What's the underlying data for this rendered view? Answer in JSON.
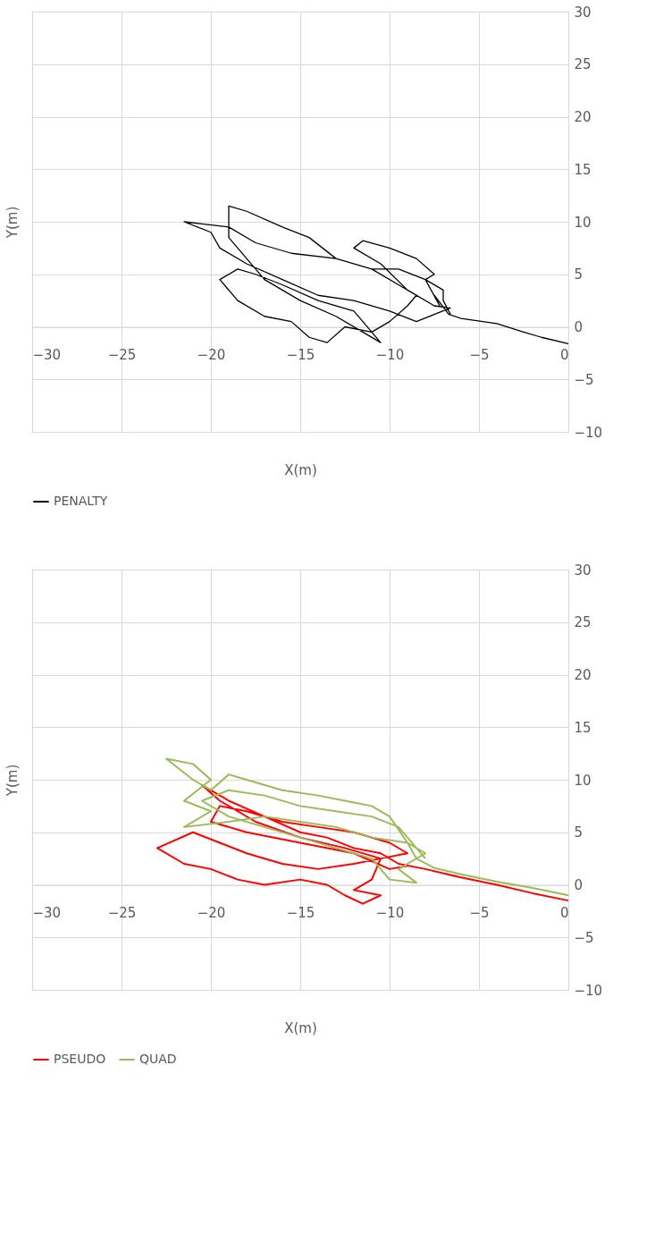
{
  "chart_data": [
    {
      "type": "line",
      "xlabel": "X(m)",
      "ylabel": "Y(m)",
      "xlim": [
        -30,
        0
      ],
      "ylim": [
        -10,
        30
      ],
      "xticks": [
        -30,
        -25,
        -20,
        -15,
        -10,
        -5,
        0
      ],
      "yticks": [
        -10,
        -5,
        0,
        5,
        10,
        15,
        20,
        25,
        30
      ],
      "grid": true,
      "legend": "bottom",
      "marker": "none",
      "line_style": "solid",
      "series": [
        {
          "name": "PENALTY",
          "color": "#000000",
          "x": [
            0,
            -1.5,
            -2.5,
            -4,
            -6,
            -6.7,
            -7.5,
            -7.2,
            -8,
            -7.5,
            -8.5,
            -10,
            -11.5,
            -12,
            -10.5,
            -9,
            -7.5,
            -6.6,
            -8.5,
            -10,
            -12,
            -14,
            -16,
            -18,
            -19.5,
            -20,
            -21.5,
            -20.5,
            -19,
            -17.5,
            -15.5,
            -13,
            -11,
            -9.5,
            -8.5,
            -9,
            -10,
            -11,
            -12.5,
            -13.5,
            -14.5,
            -15.5,
            -17,
            -18.5,
            -19.5,
            -18.5,
            -17.5,
            -16,
            -14,
            -12,
            -10.5,
            -11.5,
            -13,
            -15,
            -17,
            -18,
            -19,
            -19,
            -18,
            -16,
            -14.5,
            -13,
            -11,
            -9.5,
            -8,
            -7,
            -7,
            -6.6
          ],
          "values": [
            -1.6,
            -1,
            -0.5,
            0.3,
            0.8,
            1.2,
            3,
            2,
            4.5,
            5,
            6.5,
            7.5,
            8.2,
            7.5,
            6,
            3.5,
            2,
            1.8,
            0.5,
            1.5,
            2.5,
            3,
            4.5,
            6,
            7.5,
            9,
            10,
            9.8,
            9.5,
            8,
            7,
            6.5,
            5.5,
            4,
            3,
            2,
            0.5,
            -0.5,
            0,
            -1.5,
            -1,
            0.5,
            1,
            2.5,
            4.5,
            5.5,
            5,
            4,
            2.5,
            1.5,
            -1.5,
            -0.5,
            1,
            2.5,
            4.5,
            6.5,
            8.5,
            11.5,
            11,
            9.5,
            8.5,
            6.5,
            5.5,
            5.5,
            4.5,
            3.5,
            2.5,
            1.2
          ]
        }
      ]
    },
    {
      "type": "line",
      "xlabel": "X(m)",
      "ylabel": "Y(m)",
      "xlim": [
        -30,
        0
      ],
      "ylim": [
        -10,
        30
      ],
      "xticks": [
        -30,
        -25,
        -20,
        -15,
        -10,
        -5,
        0
      ],
      "yticks": [
        -10,
        -5,
        0,
        5,
        10,
        15,
        20,
        25,
        30
      ],
      "grid": true,
      "legend": "bottom",
      "marker": "none",
      "line_style": "solid",
      "series": [
        {
          "name": "PSEUDO",
          "color": "#ff0000",
          "x": [
            0,
            -2,
            -4,
            -6,
            -8,
            -9.5,
            -10.5,
            -12,
            -13.5,
            -15,
            -17,
            -19,
            -20.5,
            -19.5,
            -17.5,
            -15,
            -12.5,
            -10.5,
            -11,
            -12,
            -10.5,
            -11.5,
            -12.5,
            -13.5,
            -15,
            -17,
            -18.5,
            -20,
            -21.5,
            -23,
            -21,
            -19.5,
            -18,
            -16,
            -14,
            -12,
            -10.5,
            -9,
            -10,
            -12,
            -14,
            -16,
            -18,
            -19.5,
            -20,
            -18,
            -15,
            -12,
            -10,
            -9
          ],
          "values": [
            -1.5,
            -0.8,
            0,
            0.7,
            1.5,
            2,
            3,
            3.5,
            4.5,
            5,
            6.5,
            8,
            9.5,
            8,
            6,
            4.5,
            3.5,
            2.5,
            0.5,
            -0.5,
            -1,
            -1.8,
            -1,
            0,
            0.5,
            0,
            0.5,
            1.5,
            2,
            3.5,
            5,
            4,
            3,
            2,
            1.5,
            2,
            2.5,
            3,
            4,
            5,
            5.5,
            6,
            7,
            7.5,
            6,
            5,
            4,
            3,
            1.5,
            1.8
          ]
        },
        {
          "name": "QUAD",
          "color": "#9bbb59",
          "x": [
            0,
            -2,
            -4,
            -6,
            -7.5,
            -8.5,
            -9,
            -10,
            -11,
            -12.5,
            -14,
            -16,
            -18,
            -19,
            -20,
            -21,
            -22.5,
            -21,
            -20,
            -21.5,
            -20,
            -21.5,
            -19,
            -17,
            -15,
            -13,
            -11,
            -9,
            -8,
            -9.5,
            -8.5,
            -10,
            -11,
            -13,
            -15,
            -17,
            -19,
            -20.5,
            -19,
            -17,
            -15,
            -13,
            -11,
            -9.5,
            -8.5,
            -8
          ],
          "values": [
            -1,
            -0.3,
            0.3,
            1,
            1.6,
            2.5,
            4,
            6.5,
            7.5,
            8,
            8.5,
            9,
            10,
            10.5,
            9,
            10,
            12,
            11.5,
            10,
            8,
            7,
            5.5,
            6,
            6.5,
            6,
            5.5,
            4.5,
            4,
            3,
            1.5,
            0.2,
            0.5,
            2.5,
            3.5,
            4.5,
            5.5,
            6.5,
            8,
            9,
            8.5,
            7.5,
            7,
            6.5,
            5.5,
            3.5,
            2.5
          ]
        }
      ]
    }
  ]
}
